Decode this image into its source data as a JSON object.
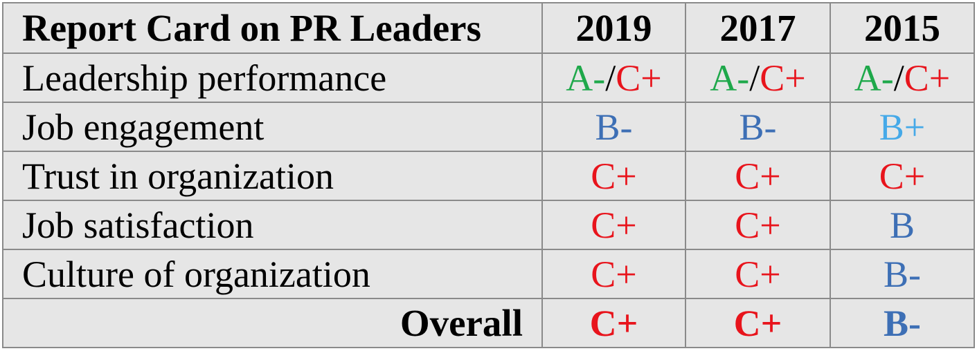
{
  "colors": {
    "green": "#1ea84a",
    "red": "#e8141c",
    "blue": "#3d6fb5",
    "light_blue": "#45a9e8",
    "black": "#000000",
    "background": "#e6e6e6",
    "border": "#8a8a8a"
  },
  "chart_data": {
    "type": "table",
    "title": "Report Card on PR Leaders",
    "columns": [
      "2019",
      "2017",
      "2015"
    ],
    "rows": [
      {
        "label": "Leadership performance",
        "grades": [
          {
            "parts": [
              {
                "text": "A-",
                "color": "green"
              },
              {
                "text": "/",
                "color": "black"
              },
              {
                "text": "C+",
                "color": "red"
              }
            ]
          },
          {
            "parts": [
              {
                "text": "A-",
                "color": "green"
              },
              {
                "text": "/",
                "color": "black"
              },
              {
                "text": "C+",
                "color": "red"
              }
            ]
          },
          {
            "parts": [
              {
                "text": "A-",
                "color": "green"
              },
              {
                "text": "/",
                "color": "black"
              },
              {
                "text": "C+",
                "color": "red"
              }
            ]
          }
        ]
      },
      {
        "label": "Job engagement",
        "grades": [
          {
            "parts": [
              {
                "text": "B-",
                "color": "blue"
              }
            ]
          },
          {
            "parts": [
              {
                "text": "B-",
                "color": "blue"
              }
            ]
          },
          {
            "parts": [
              {
                "text": "B+",
                "color": "light_blue"
              }
            ]
          }
        ]
      },
      {
        "label": "Trust in organization",
        "grades": [
          {
            "parts": [
              {
                "text": "C+",
                "color": "red"
              }
            ]
          },
          {
            "parts": [
              {
                "text": "C+",
                "color": "red"
              }
            ]
          },
          {
            "parts": [
              {
                "text": "C+",
                "color": "red"
              }
            ]
          }
        ]
      },
      {
        "label": "Job satisfaction",
        "grades": [
          {
            "parts": [
              {
                "text": "C+",
                "color": "red"
              }
            ]
          },
          {
            "parts": [
              {
                "text": "C+",
                "color": "red"
              }
            ]
          },
          {
            "parts": [
              {
                "text": "B",
                "color": "blue"
              }
            ]
          }
        ]
      },
      {
        "label": "Culture of organization",
        "grades": [
          {
            "parts": [
              {
                "text": "C+",
                "color": "red"
              }
            ]
          },
          {
            "parts": [
              {
                "text": "C+",
                "color": "red"
              }
            ]
          },
          {
            "parts": [
              {
                "text": "B-",
                "color": "blue"
              }
            ]
          }
        ]
      }
    ],
    "overall": {
      "label": "Overall",
      "grades": [
        {
          "parts": [
            {
              "text": "C+",
              "color": "red"
            }
          ]
        },
        {
          "parts": [
            {
              "text": "C+",
              "color": "red"
            }
          ]
        },
        {
          "parts": [
            {
              "text": "B-",
              "color": "blue"
            }
          ]
        }
      ]
    }
  }
}
